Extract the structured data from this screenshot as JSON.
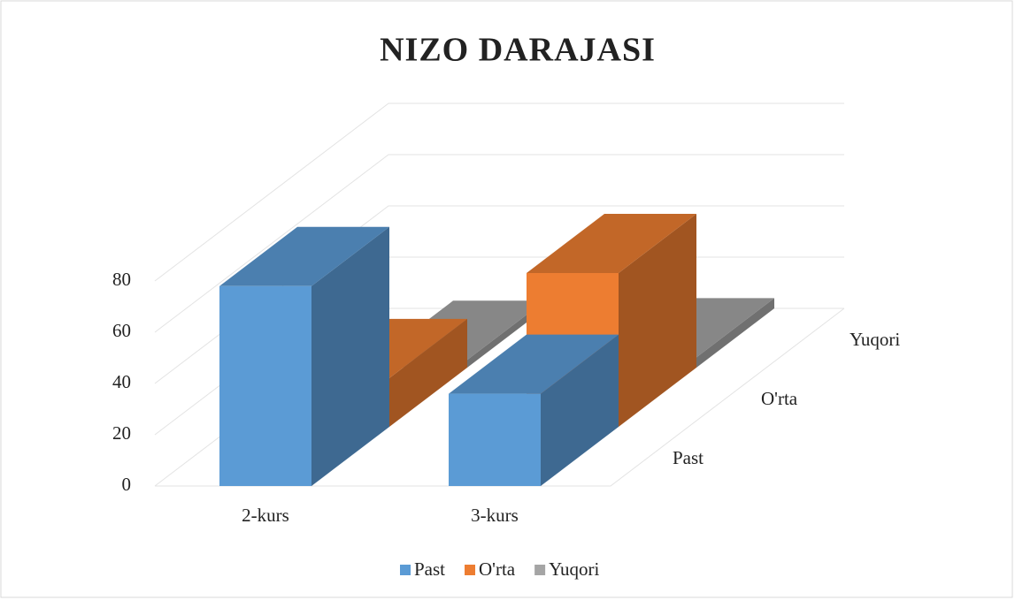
{
  "chart_data": {
    "type": "bar3d",
    "title": "NIZO DARAJASI",
    "categories": [
      "2-kurs",
      "3-kurs"
    ],
    "series": [
      {
        "name": "Past",
        "color": "#5b9bd5",
        "values": [
          78,
          36
        ]
      },
      {
        "name": "O'rta",
        "color": "#ed7d31",
        "values": [
          19,
          60
        ]
      },
      {
        "name": "Yuqori",
        "color": "#a5a5a5",
        "values": [
          3,
          4
        ]
      }
    ],
    "ylim": [
      0,
      80
    ],
    "yticks": [
      0,
      20,
      40,
      60,
      80
    ],
    "grid": true,
    "legend": "bottom"
  }
}
